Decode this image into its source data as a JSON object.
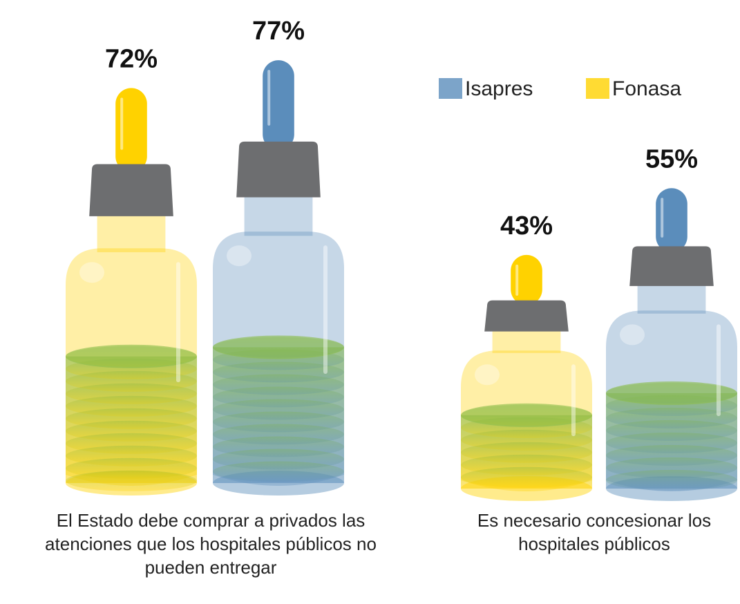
{
  "chart_data": {
    "type": "bottle",
    "categories": [
      "El Estado debe comprar a privados las atenciones que los hospitales públicos no pueden entregar",
      "Es necesario concesionar los hospitales públicos"
    ],
    "series": [
      {
        "name": "Isapres",
        "color": "#5b8dbb",
        "values": [
          77,
          55
        ],
        "value_labels": [
          "77%",
          "55%"
        ]
      },
      {
        "name": "Fonasa",
        "color": "#ffd200",
        "values": [
          72,
          43
        ],
        "value_labels": [
          "72%",
          "43%"
        ]
      }
    ]
  }
}
